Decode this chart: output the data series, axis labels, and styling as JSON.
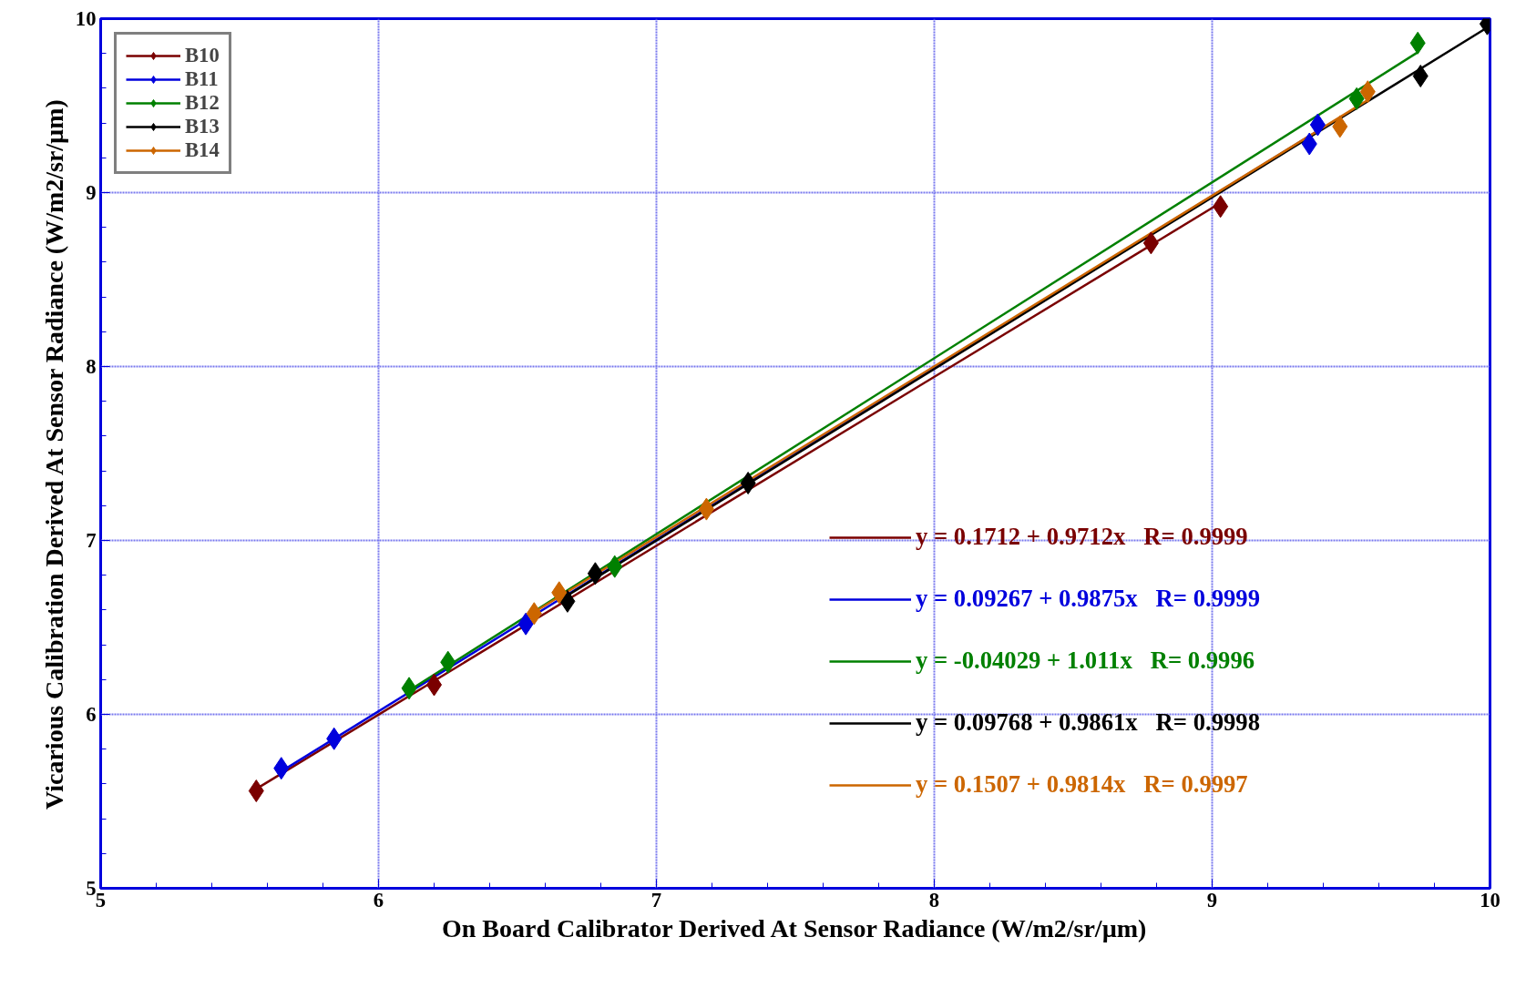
{
  "chart_data": {
    "type": "scatter",
    "xlabel": "On Board Calibrator Derived At Sensor Radiance (W/m2/sr/µm)",
    "ylabel": "Vicarious Calibration Derived At Sensor Radiance (W/m2/sr/µm)",
    "xlim": [
      5,
      10
    ],
    "ylim": [
      5,
      10
    ],
    "xticks": [
      5,
      6,
      7,
      8,
      9,
      10
    ],
    "yticks": [
      5,
      6,
      7,
      8,
      9,
      10
    ],
    "grid": true,
    "legend": "top left",
    "marker": "diamond",
    "series": [
      {
        "name": "B10",
        "color": "#7a0000",
        "x": [
          5.56,
          6.2,
          8.78,
          9.03
        ],
        "values": [
          5.56,
          6.17,
          8.71,
          8.92
        ]
      },
      {
        "name": "B11",
        "color": "#0000dd",
        "x": [
          5.65,
          5.84,
          6.53,
          9.35,
          9.38
        ],
        "values": [
          5.69,
          5.86,
          6.52,
          9.28,
          9.39
        ]
      },
      {
        "name": "B12",
        "color": "#008000",
        "x": [
          6.11,
          6.25,
          6.85,
          9.52,
          9.74
        ],
        "values": [
          6.15,
          6.3,
          6.85,
          9.54,
          9.86
        ]
      },
      {
        "name": "B13",
        "color": "#000000",
        "x": [
          6.68,
          6.78,
          7.33,
          9.75,
          9.99
        ],
        "values": [
          6.65,
          6.81,
          7.33,
          9.67,
          9.97
        ]
      },
      {
        "name": "B14",
        "color": "#cc6600",
        "x": [
          6.56,
          6.65,
          7.18,
          9.46,
          9.56
        ],
        "values": [
          6.58,
          6.7,
          7.18,
          9.38,
          9.58
        ]
      },
      {
        "name": "y = 0.1712 + 0.9712x   R= 0.9999",
        "type": "line",
        "marker": "none",
        "color": "#7a0000",
        "x": [
          5.56,
          9.03
        ],
        "values": [
          5.571,
          8.941
        ]
      },
      {
        "name": "y = 0.09267 + 0.9875x   R= 0.9999",
        "type": "line",
        "marker": "none",
        "color": "#0000dd",
        "x": [
          5.65,
          9.38
        ],
        "values": [
          5.672,
          9.355
        ]
      },
      {
        "name": "y = -0.04029 + 1.011x   R= 0.9996",
        "type": "line",
        "marker": "none",
        "color": "#008000",
        "x": [
          6.11,
          9.74
        ],
        "values": [
          6.137,
          9.807
        ]
      },
      {
        "name": "y = 0.09768 + 0.9861x   R= 0.9998",
        "type": "line",
        "marker": "none",
        "color": "#000000",
        "x": [
          6.68,
          9.99
        ],
        "values": [
          6.684,
          9.949
        ]
      },
      {
        "name": "y = 0.1507 + 0.9814x   R= 0.9997",
        "type": "line",
        "marker": "none",
        "color": "#cc6600",
        "x": [
          6.56,
          9.56
        ],
        "values": [
          6.588,
          9.532
        ]
      }
    ]
  }
}
